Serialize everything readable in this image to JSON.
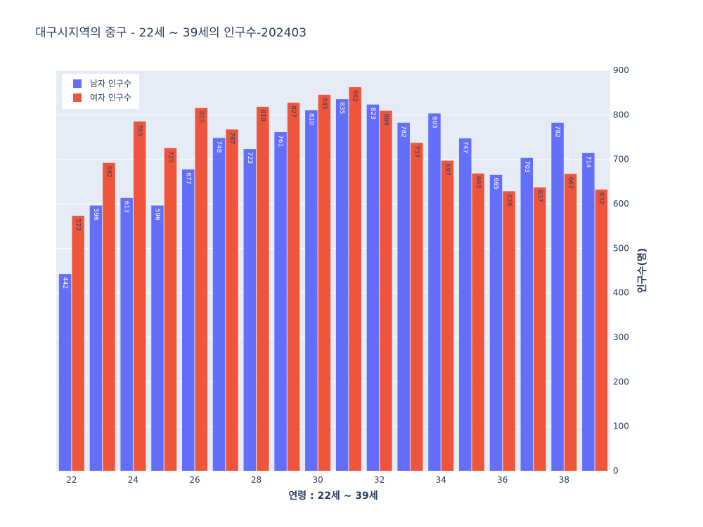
{
  "chart_data": {
    "type": "bar",
    "title": "대구시지역의 중구 - 22세 ~ 39세의 인구수-202403",
    "xlabel": "연령 : 22세 ~ 39세",
    "ylabel": "인구수(명)",
    "x": [
      22,
      23,
      24,
      25,
      26,
      27,
      28,
      29,
      30,
      31,
      32,
      33,
      34,
      35,
      36,
      37,
      38,
      39
    ],
    "x_ticks": [
      "22",
      "24",
      "26",
      "28",
      "30",
      "32",
      "34",
      "36",
      "38"
    ],
    "y_ticks": [
      "0",
      "100",
      "200",
      "300",
      "400",
      "500",
      "600",
      "700",
      "800",
      "900"
    ],
    "ylim": [
      0,
      900
    ],
    "y_axis_side": "right",
    "legend_position": "top-left",
    "series": [
      {
        "name": "남자 인구수",
        "color": "#636efa",
        "values": [
          442,
          596,
          613,
          596,
          677,
          748,
          723,
          761,
          810,
          835,
          823,
          782,
          803,
          747,
          665,
          703,
          782,
          714
        ]
      },
      {
        "name": "여자 인구수",
        "color": "#ef553b",
        "values": [
          573,
          692,
          785,
          725,
          815,
          767,
          818,
          827,
          845,
          862,
          809,
          737,
          697,
          668,
          628,
          637,
          667,
          632
        ]
      }
    ]
  }
}
